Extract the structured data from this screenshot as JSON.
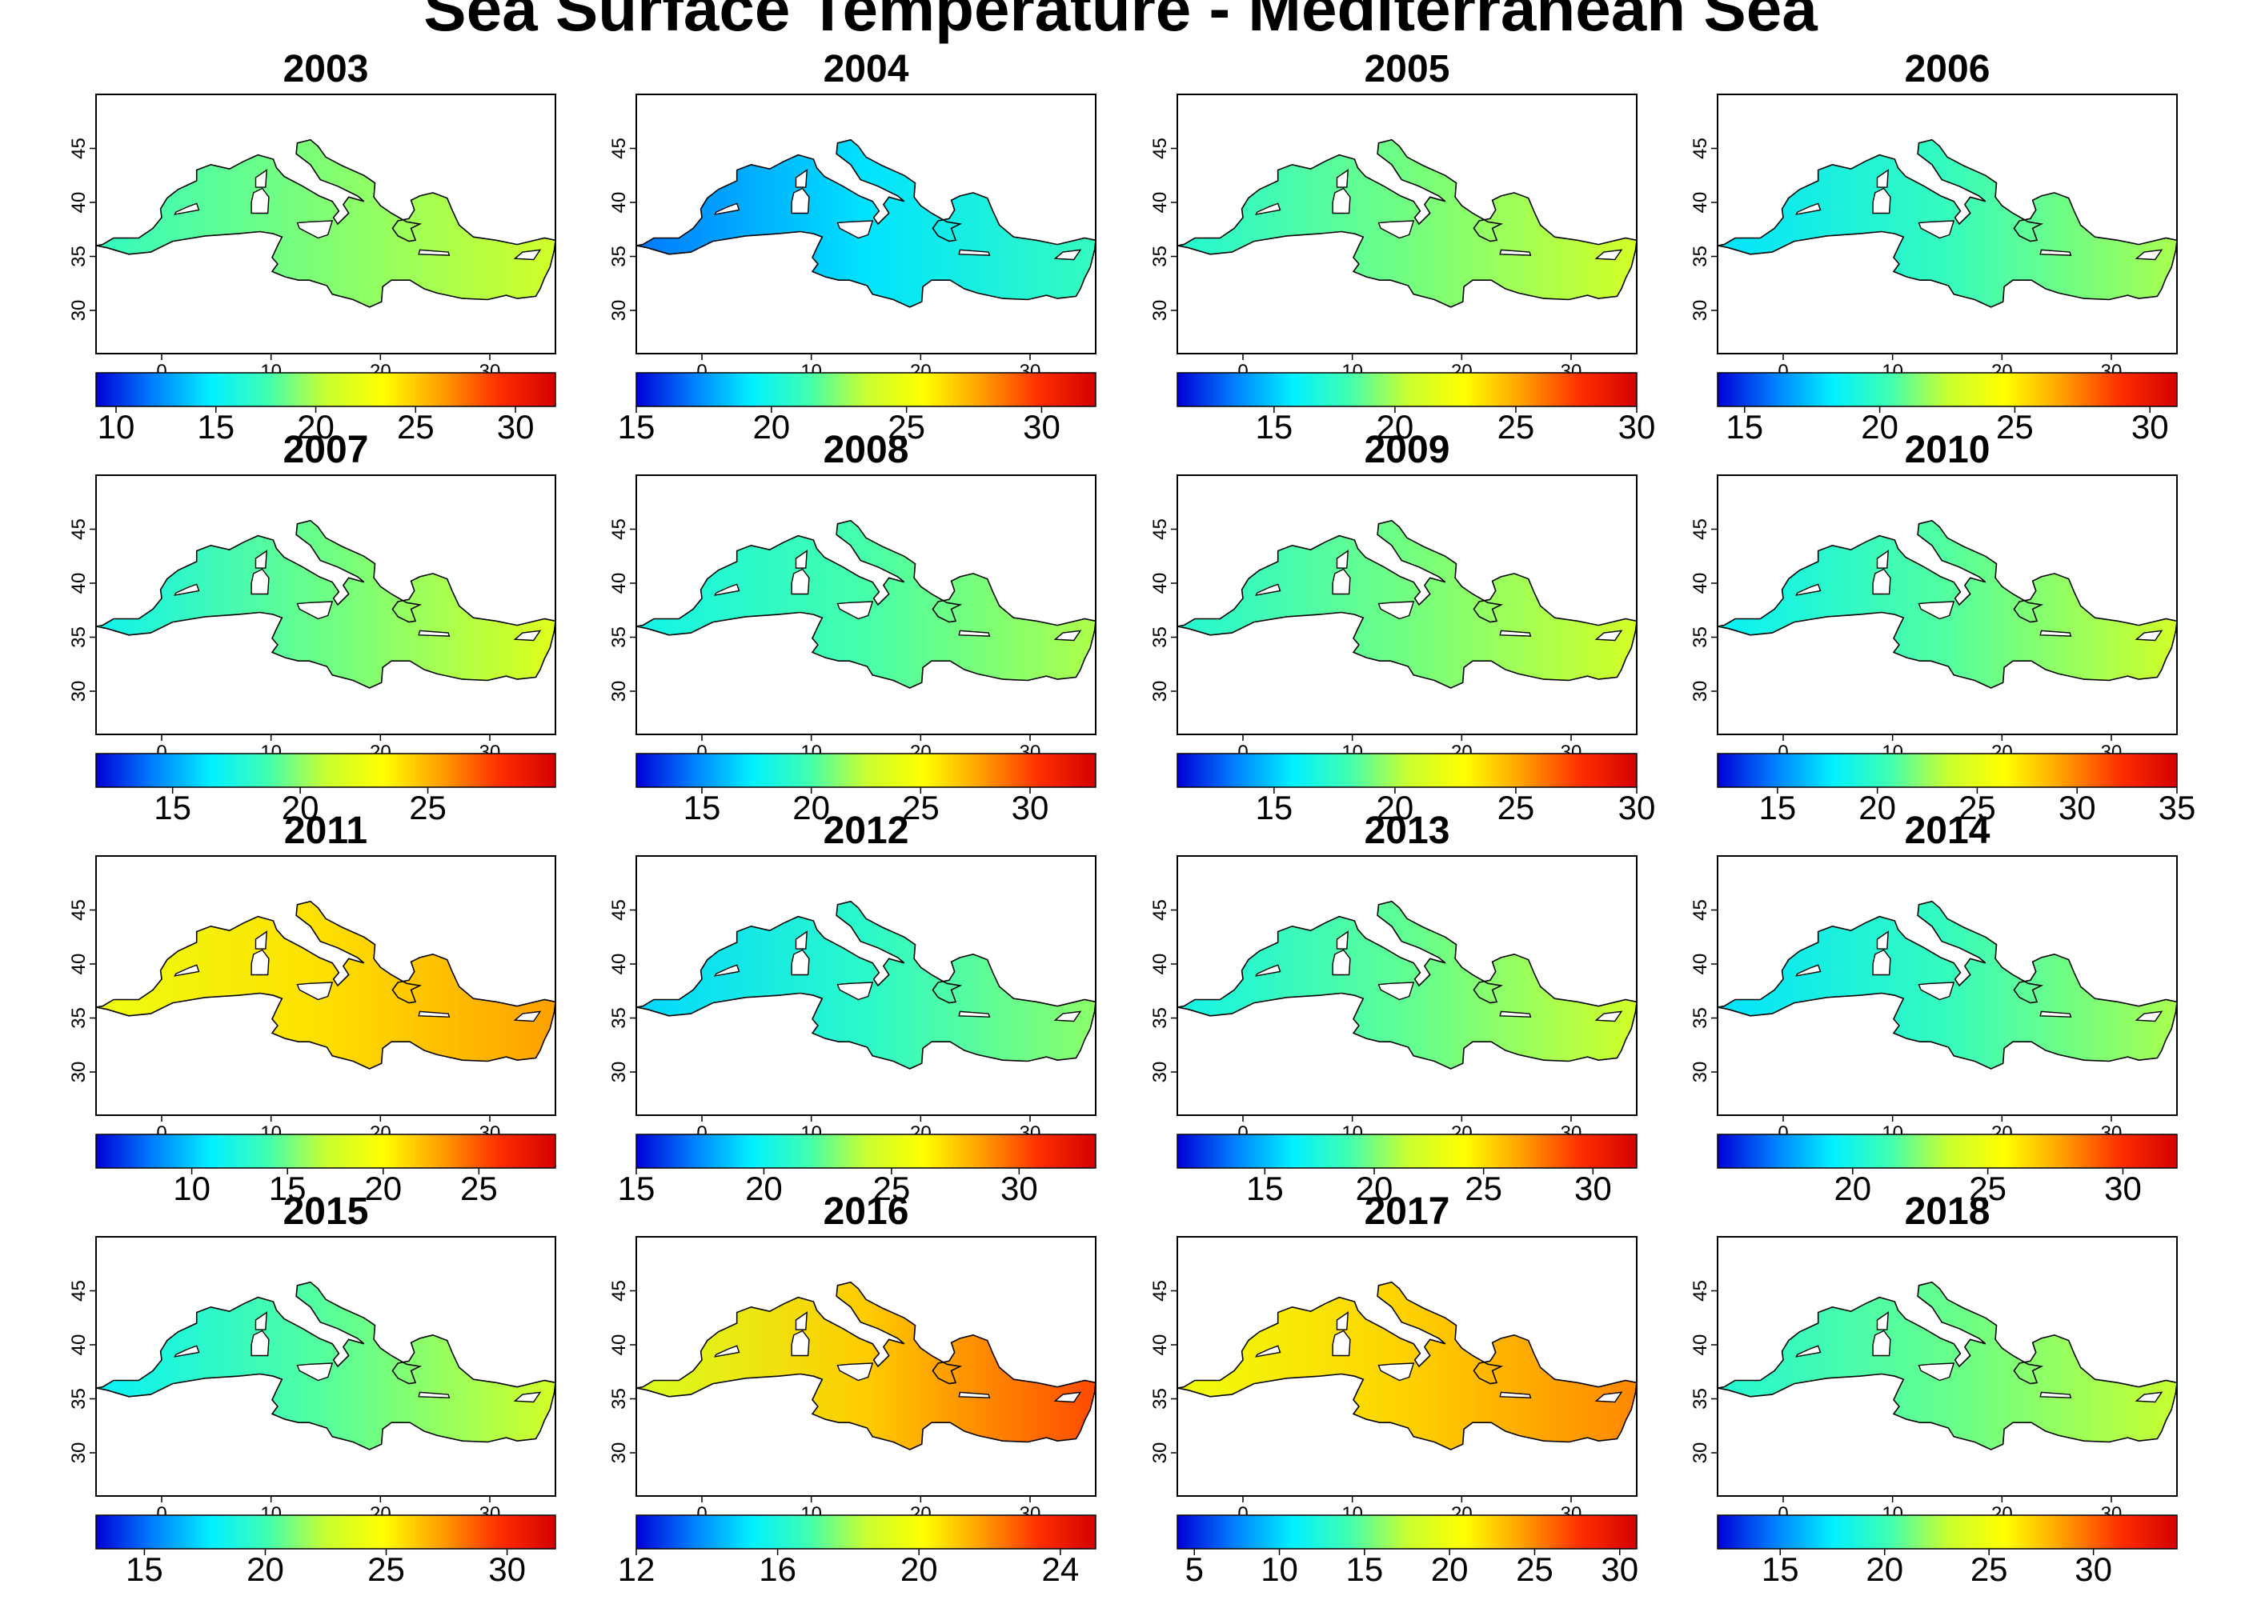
{
  "chart_data": {
    "type": "heatmap",
    "title": "Sea Surface Temperature - Mediterranean Sea",
    "x_ticks": [
      0,
      10,
      20,
      30
    ],
    "y_ticks": [
      30,
      35,
      40,
      45
    ],
    "xlim": [
      -6,
      36
    ],
    "ylim": [
      26,
      50
    ],
    "colorscale": [
      "#0000d6",
      "#0080ff",
      "#00f0ff",
      "#40ffb0",
      "#c8ff30",
      "#ffff00",
      "#ffa000",
      "#ff3000",
      "#d40000"
    ],
    "panels": [
      {
        "year": "2003",
        "cbar_range": [
          9,
          32
        ],
        "cbar_ticks": [
          "10",
          "15",
          "20",
          "25",
          "30"
        ],
        "mean_sst": 20,
        "west": 17,
        "east": 21
      },
      {
        "year": "2004",
        "cbar_range": [
          15,
          32
        ],
        "cbar_ticks": [
          "15",
          "20",
          "25",
          "30"
        ],
        "mean_sst": 19,
        "west": 17,
        "east": 21
      },
      {
        "year": "2005",
        "cbar_range": [
          11,
          30
        ],
        "cbar_ticks": [
          "15",
          "20",
          "25",
          "30"
        ],
        "mean_sst": 19,
        "west": 17,
        "east": 21
      },
      {
        "year": "2006",
        "cbar_range": [
          14,
          31
        ],
        "cbar_ticks": [
          "15",
          "20",
          "25",
          "30"
        ],
        "mean_sst": 20,
        "west": 18,
        "east": 22
      },
      {
        "year": "2007",
        "cbar_range": [
          12,
          30
        ],
        "cbar_ticks": [
          "15",
          "20",
          "25"
        ],
        "mean_sst": 19,
        "west": 17,
        "east": 22
      },
      {
        "year": "2008",
        "cbar_range": [
          12,
          33
        ],
        "cbar_ticks": [
          "15",
          "20",
          "25",
          "30"
        ],
        "mean_sst": 20,
        "west": 18,
        "east": 22
      },
      {
        "year": "2009",
        "cbar_range": [
          11,
          30
        ],
        "cbar_ticks": [
          "15",
          "20",
          "25",
          "30"
        ],
        "mean_sst": 19,
        "west": 17,
        "east": 21
      },
      {
        "year": "2010",
        "cbar_range": [
          12,
          35
        ],
        "cbar_ticks": [
          "15",
          "20",
          "25",
          "30",
          "35"
        ],
        "mean_sst": 21,
        "west": 18,
        "east": 24
      },
      {
        "year": "2011",
        "cbar_range": [
          5,
          29
        ],
        "cbar_ticks": [
          "10",
          "15",
          "20",
          "25"
        ],
        "mean_sst": 20,
        "west": 19,
        "east": 23
      },
      {
        "year": "2012",
        "cbar_range": [
          15,
          33
        ],
        "cbar_ticks": [
          "15",
          "20",
          "25",
          "30"
        ],
        "mean_sst": 21,
        "west": 19,
        "east": 23
      },
      {
        "year": "2013",
        "cbar_range": [
          11,
          32
        ],
        "cbar_ticks": [
          "15",
          "20",
          "25",
          "30"
        ],
        "mean_sst": 20,
        "west": 17,
        "east": 22
      },
      {
        "year": "2014",
        "cbar_range": [
          15,
          32
        ],
        "cbar_ticks": [
          "20",
          "25",
          "30"
        ],
        "mean_sst": 21,
        "west": 19,
        "east": 23
      },
      {
        "year": "2015",
        "cbar_range": [
          13,
          32
        ],
        "cbar_ticks": [
          "15",
          "20",
          "25",
          "30"
        ],
        "mean_sst": 21,
        "west": 18,
        "east": 23
      },
      {
        "year": "2016",
        "cbar_range": [
          12,
          25
        ],
        "cbar_ticks": [
          "12",
          "16",
          "20",
          "24"
        ],
        "mean_sst": 20,
        "west": 19,
        "east": 23
      },
      {
        "year": "2017",
        "cbar_range": [
          4,
          31
        ],
        "cbar_ticks": [
          "5",
          "10",
          "15",
          "20",
          "25",
          "30"
        ],
        "mean_sst": 21,
        "west": 20,
        "east": 25
      },
      {
        "year": "2018",
        "cbar_range": [
          12,
          34
        ],
        "cbar_ticks": [
          "15",
          "20",
          "25",
          "30"
        ],
        "mean_sst": 21,
        "west": 19,
        "east": 23
      }
    ]
  }
}
